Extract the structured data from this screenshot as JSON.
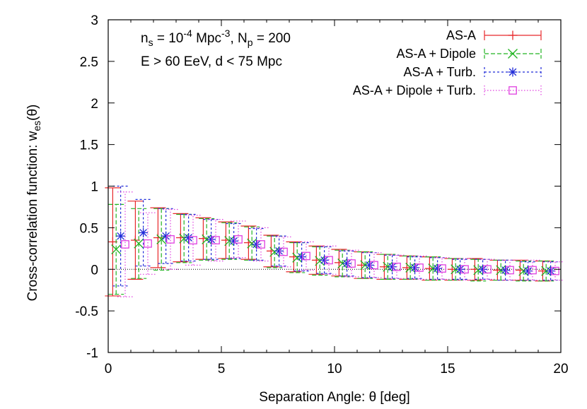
{
  "chart_data": {
    "type": "scatter",
    "xlabel": "Separation Angle: θ [deg]",
    "ylabel_main": "Cross-correlation function: w",
    "ylabel_sub": "es",
    "ylabel_tail": "(θ)",
    "xlim": [
      0,
      20
    ],
    "ylim": [
      -1,
      3
    ],
    "xticks": [
      "0",
      "5",
      "10",
      "15",
      "20"
    ],
    "yticks": [
      "-1",
      "-0.5",
      "0",
      "0.5",
      "1",
      "1.5",
      "2",
      "2.5",
      "3"
    ],
    "grid": false,
    "legend_position": "top-right",
    "zero_line": true,
    "annotations": {
      "line1": {
        "n": "n",
        "n_sub": "s",
        "eq1": " = 10",
        "exp1": "-4",
        "unit": " Mpc",
        "exp2": "-3",
        "mid": ", N",
        "np_sub": "p",
        "eq2": " = 200"
      },
      "line2": "E > 60 EeV, d < 75 Mpc"
    },
    "series": [
      {
        "name": "AS-A",
        "color": "#e8282b",
        "marker": "plus",
        "x": [
          0.2,
          1.2,
          2.2,
          3.2,
          4.2,
          5.2,
          6.2,
          7.2,
          8.2,
          9.2,
          10.2,
          11.2,
          12.2,
          13.2,
          14.2,
          15.2,
          16.2,
          17.2,
          18.2,
          19.2
        ],
        "y": [
          0.33,
          0.35,
          0.38,
          0.38,
          0.37,
          0.35,
          0.32,
          0.22,
          0.15,
          0.11,
          0.08,
          0.05,
          0.03,
          0.02,
          0.01,
          0.0,
          0.0,
          -0.01,
          -0.01,
          -0.02
        ],
        "err": [
          0.65,
          0.47,
          0.36,
          0.29,
          0.25,
          0.22,
          0.2,
          0.19,
          0.18,
          0.17,
          0.16,
          0.16,
          0.15,
          0.14,
          0.14,
          0.13,
          0.13,
          0.12,
          0.12,
          0.12
        ]
      },
      {
        "name": "AS-A + Dipole",
        "color": "#22b422",
        "marker": "x",
        "x": [
          0.35,
          1.35,
          2.35,
          3.35,
          4.35,
          5.35,
          6.35,
          7.35,
          8.35,
          9.35,
          10.35,
          11.35,
          12.35,
          13.35,
          14.35,
          15.35,
          16.35,
          17.35,
          18.35,
          19.35
        ],
        "y": [
          0.24,
          0.31,
          0.36,
          0.37,
          0.36,
          0.34,
          0.31,
          0.21,
          0.14,
          0.1,
          0.07,
          0.05,
          0.03,
          0.02,
          0.01,
          0.0,
          -0.01,
          -0.01,
          -0.02,
          -0.02
        ],
        "err": [
          0.54,
          0.42,
          0.37,
          0.29,
          0.25,
          0.22,
          0.2,
          0.19,
          0.18,
          0.17,
          0.16,
          0.16,
          0.15,
          0.14,
          0.14,
          0.13,
          0.13,
          0.12,
          0.12,
          0.12
        ]
      },
      {
        "name": "AS-A + Turb.",
        "color": "#1f2ad8",
        "marker": "star",
        "x": [
          0.55,
          1.55,
          2.55,
          3.55,
          4.55,
          5.55,
          6.55,
          7.55,
          8.55,
          9.55,
          10.55,
          11.55,
          12.55,
          13.55,
          14.55,
          15.55,
          16.55,
          17.55,
          18.55,
          19.55
        ],
        "y": [
          0.4,
          0.44,
          0.4,
          0.38,
          0.36,
          0.34,
          0.3,
          0.22,
          0.15,
          0.11,
          0.07,
          0.05,
          0.03,
          0.02,
          0.01,
          0.0,
          0.0,
          -0.01,
          -0.02,
          -0.02
        ],
        "err": [
          0.6,
          0.4,
          0.33,
          0.28,
          0.24,
          0.21,
          0.19,
          0.18,
          0.17,
          0.16,
          0.15,
          0.15,
          0.14,
          0.13,
          0.13,
          0.12,
          0.12,
          0.12,
          0.11,
          0.11
        ]
      },
      {
        "name": "AS-A + Dipole + Turb.",
        "color": "#e040e0",
        "marker": "square",
        "x": [
          0.75,
          1.75,
          2.75,
          3.75,
          4.75,
          5.75,
          6.75,
          7.75,
          8.75,
          9.75,
          10.75,
          11.75,
          12.75,
          13.75,
          14.75,
          15.75,
          16.75,
          17.75,
          18.75,
          19.75
        ],
        "y": [
          0.3,
          0.31,
          0.36,
          0.35,
          0.35,
          0.36,
          0.3,
          0.21,
          0.16,
          0.11,
          0.07,
          0.05,
          0.03,
          0.02,
          0.01,
          0.0,
          0.0,
          -0.01,
          -0.01,
          -0.02
        ],
        "err": [
          0.63,
          0.37,
          0.36,
          0.3,
          0.25,
          0.22,
          0.2,
          0.18,
          0.17,
          0.17,
          0.16,
          0.15,
          0.14,
          0.14,
          0.13,
          0.13,
          0.12,
          0.12,
          0.12,
          0.11
        ]
      }
    ]
  }
}
